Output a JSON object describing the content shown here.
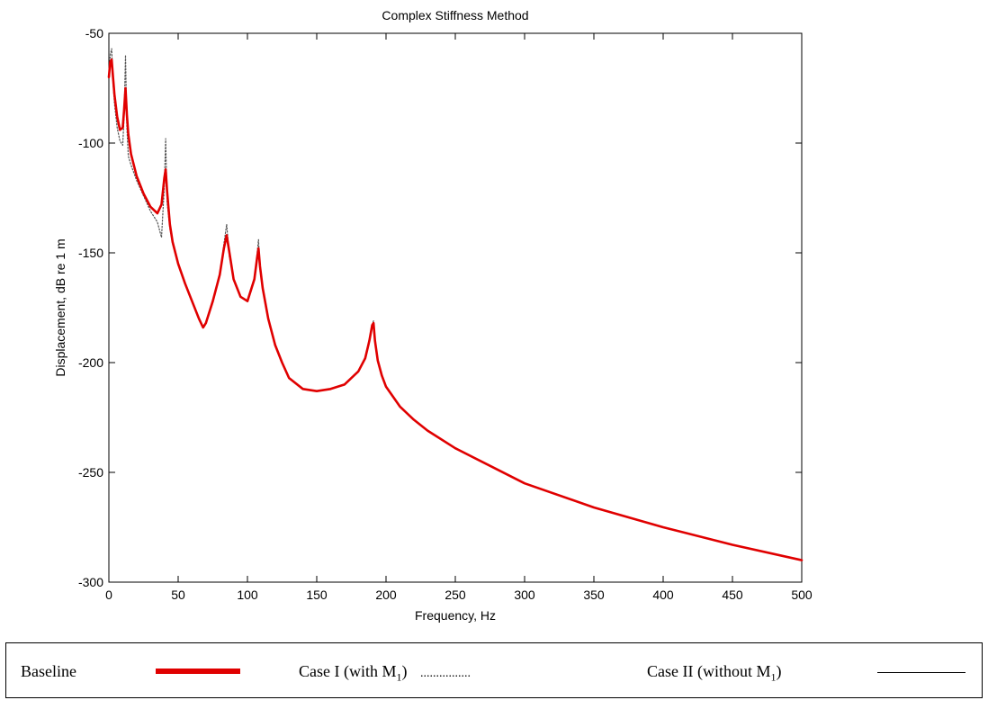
{
  "chart_data": {
    "type": "line",
    "title": "Complex Stiffness Method",
    "xlabel": "Frequency, Hz",
    "ylabel": "Displacement, dB re 1 m",
    "xlim": [
      0,
      500
    ],
    "ylim": [
      -300,
      -50
    ],
    "xticks": [
      0,
      50,
      100,
      150,
      200,
      250,
      300,
      350,
      400,
      450,
      500
    ],
    "yticks": [
      -300,
      -250,
      -200,
      -150,
      -100,
      -50
    ],
    "grid": false,
    "series": [
      {
        "name": "Baseline",
        "color": "#e00000",
        "style": "solid",
        "x": [
          0,
          1,
          2,
          3,
          4,
          6,
          8,
          10,
          11,
          12,
          13,
          14,
          16,
          20,
          25,
          30,
          35,
          38,
          40,
          41,
          42,
          44,
          46,
          50,
          55,
          60,
          65,
          68,
          70,
          75,
          80,
          83,
          85,
          87,
          90,
          95,
          100,
          105,
          107,
          108,
          109,
          111,
          115,
          120,
          125,
          130,
          140,
          150,
          160,
          170,
          180,
          185,
          188,
          190,
          191,
          192,
          194,
          197,
          200,
          210,
          220,
          230,
          250,
          275,
          300,
          350,
          400,
          450,
          500
        ],
        "y": [
          -70,
          -63,
          -62,
          -70,
          -78,
          -88,
          -94,
          -93,
          -85,
          -75,
          -87,
          -96,
          -105,
          -115,
          -123,
          -129,
          -132,
          -128,
          -116,
          -112,
          -122,
          -137,
          -145,
          -155,
          -164,
          -172,
          -180,
          -184,
          -182,
          -172,
          -160,
          -148,
          -142,
          -150,
          -162,
          -170,
          -172,
          -162,
          -152,
          -148,
          -156,
          -166,
          -180,
          -192,
          -200,
          -207,
          -212,
          -213,
          -212,
          -210,
          -204,
          -198,
          -190,
          -183,
          -182,
          -190,
          -199,
          -206,
          -211,
          -220,
          -226,
          -231,
          -239,
          -247,
          -255,
          -266,
          -275,
          -283,
          -290
        ]
      },
      {
        "name": "Case I (with M1)",
        "color": "#555555",
        "style": "dotted",
        "x": [
          0,
          1,
          2,
          3,
          4,
          6,
          8,
          10,
          11,
          12,
          13,
          14,
          16,
          20,
          25,
          30,
          35,
          38,
          40,
          41,
          42,
          44,
          46,
          50,
          55,
          60,
          65,
          68,
          70,
          75,
          80,
          83,
          85,
          87,
          90,
          95,
          100,
          105,
          107,
          108,
          109,
          111,
          115,
          120,
          125,
          130,
          140,
          150,
          160,
          170,
          180,
          185,
          188,
          190,
          191,
          192,
          194,
          197,
          200,
          210,
          220,
          230,
          250,
          275,
          300,
          350,
          400,
          450,
          500
        ],
        "y": [
          -70,
          -60,
          -57,
          -72,
          -82,
          -93,
          -99,
          -101,
          -88,
          -60,
          -93,
          -106,
          -110,
          -117,
          -124,
          -131,
          -136,
          -143,
          -120,
          -98,
          -127,
          -139,
          -146,
          -155,
          -164,
          -172,
          -180,
          -184,
          -182,
          -172,
          -160,
          -146,
          -137,
          -152,
          -162,
          -170,
          -172,
          -162,
          -150,
          -144,
          -158,
          -166,
          -180,
          -192,
          -200,
          -207,
          -212,
          -213,
          -212,
          -210,
          -204,
          -198,
          -190,
          -183,
          -181,
          -190,
          -199,
          -206,
          -211,
          -220,
          -226,
          -231,
          -239,
          -247,
          -255,
          -266,
          -275,
          -283,
          -290
        ]
      }
    ]
  },
  "legend": {
    "baseline_label": "Baseline",
    "case1_label": "Case I (with M",
    "case1_sub": "1",
    "case1_close": ")",
    "case1_dots": "................",
    "case2_label": "Case II (without M",
    "case2_sub": "1",
    "case2_close": ")"
  }
}
